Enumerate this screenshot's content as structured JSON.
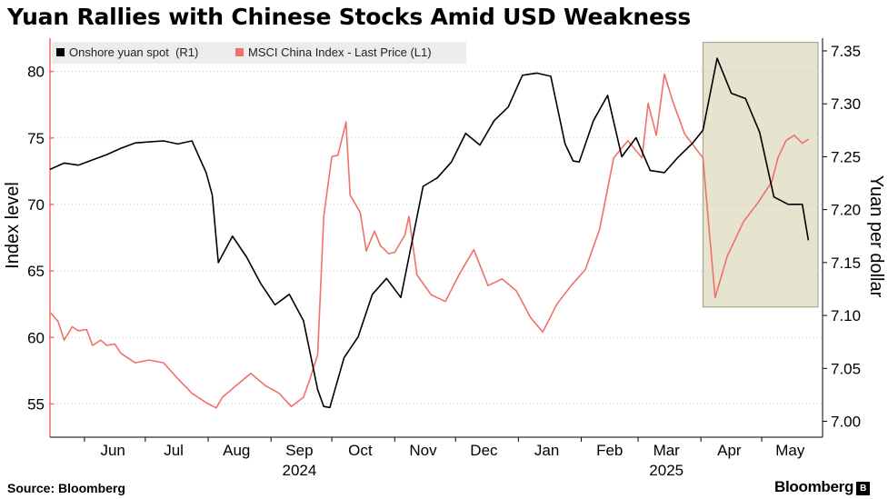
{
  "title": "Yuan Rallies with Chinese Stocks Amid USD Weakness",
  "source": "Source: Bloomberg",
  "brand": "Bloomberg",
  "brand_mark": "B",
  "colors": {
    "yuan": "#000000",
    "msci": "#f0706a",
    "highlight_fill": "#e6e4cf",
    "highlight_stroke": "#9d9c85",
    "grid": "#c8c8c8"
  },
  "chart_data": {
    "type": "line",
    "title": "Yuan Rallies with Chinese Stocks Amid USD Weakness",
    "ylabel_left": "Index level",
    "ylabel_right": "Yuan per dollar",
    "ylim_left": [
      52.5,
      82.5
    ],
    "ylim_right": [
      6.985,
      7.362
    ],
    "yticks_left": [
      "55",
      "60",
      "65",
      "70",
      "75",
      "80"
    ],
    "yticks_right": [
      "7.00",
      "7.05",
      "7.10",
      "7.15",
      "7.20",
      "7.25",
      "7.30",
      "7.35"
    ],
    "xlim": [
      "2024-05-15",
      "2025-05-31"
    ],
    "month_labels": [
      {
        "label": "Jun",
        "date": "2024-06-15"
      },
      {
        "label": "Jul",
        "date": "2024-07-15"
      },
      {
        "label": "Aug",
        "date": "2024-08-15"
      },
      {
        "label": "Sep",
        "date": "2024-09-15"
      },
      {
        "label": "Oct",
        "date": "2024-10-15"
      },
      {
        "label": "Nov",
        "date": "2024-11-15"
      },
      {
        "label": "Dec",
        "date": "2024-12-15"
      },
      {
        "label": "Jan",
        "date": "2025-01-15"
      },
      {
        "label": "Feb",
        "date": "2025-02-15"
      },
      {
        "label": "Mar",
        "date": "2025-03-15"
      },
      {
        "label": "Apr",
        "date": "2025-04-15"
      },
      {
        "label": "May",
        "date": "2025-05-15"
      }
    ],
    "year_labels": [
      {
        "label": "2024",
        "date": "2024-09-15"
      },
      {
        "label": "2025",
        "date": "2025-03-15"
      }
    ],
    "highlight": {
      "start": "2025-04-02",
      "end": "2025-05-31"
    },
    "legend": "top-left",
    "grid": "horizontal dotted",
    "series": [
      {
        "name": "Onshore yuan spot  (R1)",
        "axis": "right",
        "points": [
          [
            "2024-05-15",
            7.238
          ],
          [
            "2024-05-22",
            7.244
          ],
          [
            "2024-05-29",
            7.242
          ],
          [
            "2024-06-05",
            7.247
          ],
          [
            "2024-06-12",
            7.252
          ],
          [
            "2024-06-19",
            7.258
          ],
          [
            "2024-06-26",
            7.263
          ],
          [
            "2024-07-03",
            7.264
          ],
          [
            "2024-07-10",
            7.265
          ],
          [
            "2024-07-17",
            7.262
          ],
          [
            "2024-07-24",
            7.265
          ],
          [
            "2024-07-31",
            7.235
          ],
          [
            "2024-08-03",
            7.214
          ],
          [
            "2024-08-06",
            7.15
          ],
          [
            "2024-08-13",
            7.175
          ],
          [
            "2024-08-20",
            7.155
          ],
          [
            "2024-08-27",
            7.13
          ],
          [
            "2024-09-03",
            7.11
          ],
          [
            "2024-09-10",
            7.12
          ],
          [
            "2024-09-17",
            7.095
          ],
          [
            "2024-09-24",
            7.03
          ],
          [
            "2024-09-27",
            7.014
          ],
          [
            "2024-09-30",
            7.013
          ],
          [
            "2024-10-07",
            7.06
          ],
          [
            "2024-10-14",
            7.08
          ],
          [
            "2024-10-21",
            7.12
          ],
          [
            "2024-10-28",
            7.135
          ],
          [
            "2024-11-04",
            7.117
          ],
          [
            "2024-11-08",
            7.155
          ],
          [
            "2024-11-15",
            7.222
          ],
          [
            "2024-11-22",
            7.23
          ],
          [
            "2024-11-29",
            7.245
          ],
          [
            "2024-12-06",
            7.272
          ],
          [
            "2024-12-13",
            7.261
          ],
          [
            "2024-12-20",
            7.284
          ],
          [
            "2024-12-27",
            7.297
          ],
          [
            "2025-01-03",
            7.327
          ],
          [
            "2025-01-10",
            7.329
          ],
          [
            "2025-01-17",
            7.326
          ],
          [
            "2025-01-24",
            7.262
          ],
          [
            "2025-01-28",
            7.246
          ],
          [
            "2025-01-31",
            7.245
          ],
          [
            "2025-02-07",
            7.284
          ],
          [
            "2025-02-14",
            7.308
          ],
          [
            "2025-02-21",
            7.25
          ],
          [
            "2025-02-28",
            7.268
          ],
          [
            "2025-03-07",
            7.237
          ],
          [
            "2025-03-14",
            7.235
          ],
          [
            "2025-03-21",
            7.25
          ],
          [
            "2025-03-28",
            7.263
          ],
          [
            "2025-04-02",
            7.275
          ],
          [
            "2025-04-09",
            7.343
          ],
          [
            "2025-04-16",
            7.31
          ],
          [
            "2025-04-23",
            7.305
          ],
          [
            "2025-04-30",
            7.273
          ],
          [
            "2025-05-07",
            7.212
          ],
          [
            "2025-05-14",
            7.205
          ],
          [
            "2025-05-21",
            7.205
          ],
          [
            "2025-05-24",
            7.171
          ]
        ]
      },
      {
        "name": "MSCI China Index - Last Price (L1)",
        "axis": "left",
        "points": [
          [
            "2024-05-15",
            61.9
          ],
          [
            "2024-05-19",
            61.2
          ],
          [
            "2024-05-22",
            59.8
          ],
          [
            "2024-05-26",
            60.8
          ],
          [
            "2024-05-29",
            60.5
          ],
          [
            "2024-06-02",
            60.6
          ],
          [
            "2024-06-05",
            59.4
          ],
          [
            "2024-06-09",
            59.8
          ],
          [
            "2024-06-12",
            59.4
          ],
          [
            "2024-06-16",
            59.5
          ],
          [
            "2024-06-19",
            58.8
          ],
          [
            "2024-06-26",
            58.1
          ],
          [
            "2024-07-03",
            58.3
          ],
          [
            "2024-07-10",
            58.1
          ],
          [
            "2024-07-17",
            56.9
          ],
          [
            "2024-07-24",
            55.8
          ],
          [
            "2024-07-31",
            55.1
          ],
          [
            "2024-08-05",
            54.7
          ],
          [
            "2024-08-08",
            55.5
          ],
          [
            "2024-08-15",
            56.4
          ],
          [
            "2024-08-22",
            57.3
          ],
          [
            "2024-08-29",
            56.4
          ],
          [
            "2024-09-05",
            55.8
          ],
          [
            "2024-09-11",
            54.8
          ],
          [
            "2024-09-17",
            55.5
          ],
          [
            "2024-09-20",
            56.8
          ],
          [
            "2024-09-24",
            58.7
          ],
          [
            "2024-09-27",
            69.1
          ],
          [
            "2024-10-01",
            73.6
          ],
          [
            "2024-10-04",
            73.7
          ],
          [
            "2024-10-08",
            76.2
          ],
          [
            "2024-10-10",
            70.7
          ],
          [
            "2024-10-15",
            69.4
          ],
          [
            "2024-10-18",
            66.5
          ],
          [
            "2024-10-22",
            68.0
          ],
          [
            "2024-10-25",
            66.9
          ],
          [
            "2024-10-29",
            66.3
          ],
          [
            "2024-11-01",
            66.4
          ],
          [
            "2024-11-06",
            67.7
          ],
          [
            "2024-11-08",
            69.1
          ],
          [
            "2024-11-12",
            64.7
          ],
          [
            "2024-11-19",
            63.2
          ],
          [
            "2024-11-26",
            62.7
          ],
          [
            "2024-12-03",
            64.8
          ],
          [
            "2024-12-10",
            66.6
          ],
          [
            "2024-12-17",
            63.9
          ],
          [
            "2024-12-24",
            64.4
          ],
          [
            "2024-12-31",
            63.5
          ],
          [
            "2025-01-07",
            61.5
          ],
          [
            "2025-01-13",
            60.4
          ],
          [
            "2025-01-20",
            62.5
          ],
          [
            "2025-01-27",
            63.9
          ],
          [
            "2025-02-03",
            65.1
          ],
          [
            "2025-02-10",
            68.1
          ],
          [
            "2025-02-17",
            73.5
          ],
          [
            "2025-02-24",
            74.8
          ],
          [
            "2025-03-03",
            73.5
          ],
          [
            "2025-03-06",
            77.6
          ],
          [
            "2025-03-10",
            75.2
          ],
          [
            "2025-03-14",
            79.8
          ],
          [
            "2025-03-18",
            77.8
          ],
          [
            "2025-03-24",
            75.3
          ],
          [
            "2025-04-02",
            73.5
          ],
          [
            "2025-04-04",
            70.0
          ],
          [
            "2025-04-08",
            63.0
          ],
          [
            "2025-04-14",
            66.1
          ],
          [
            "2025-04-22",
            68.7
          ],
          [
            "2025-04-29",
            70.1
          ],
          [
            "2025-05-06",
            71.7
          ],
          [
            "2025-05-09",
            73.5
          ],
          [
            "2025-05-13",
            74.8
          ],
          [
            "2025-05-17",
            75.2
          ],
          [
            "2025-05-21",
            74.6
          ],
          [
            "2025-05-24",
            74.9
          ]
        ]
      }
    ]
  }
}
